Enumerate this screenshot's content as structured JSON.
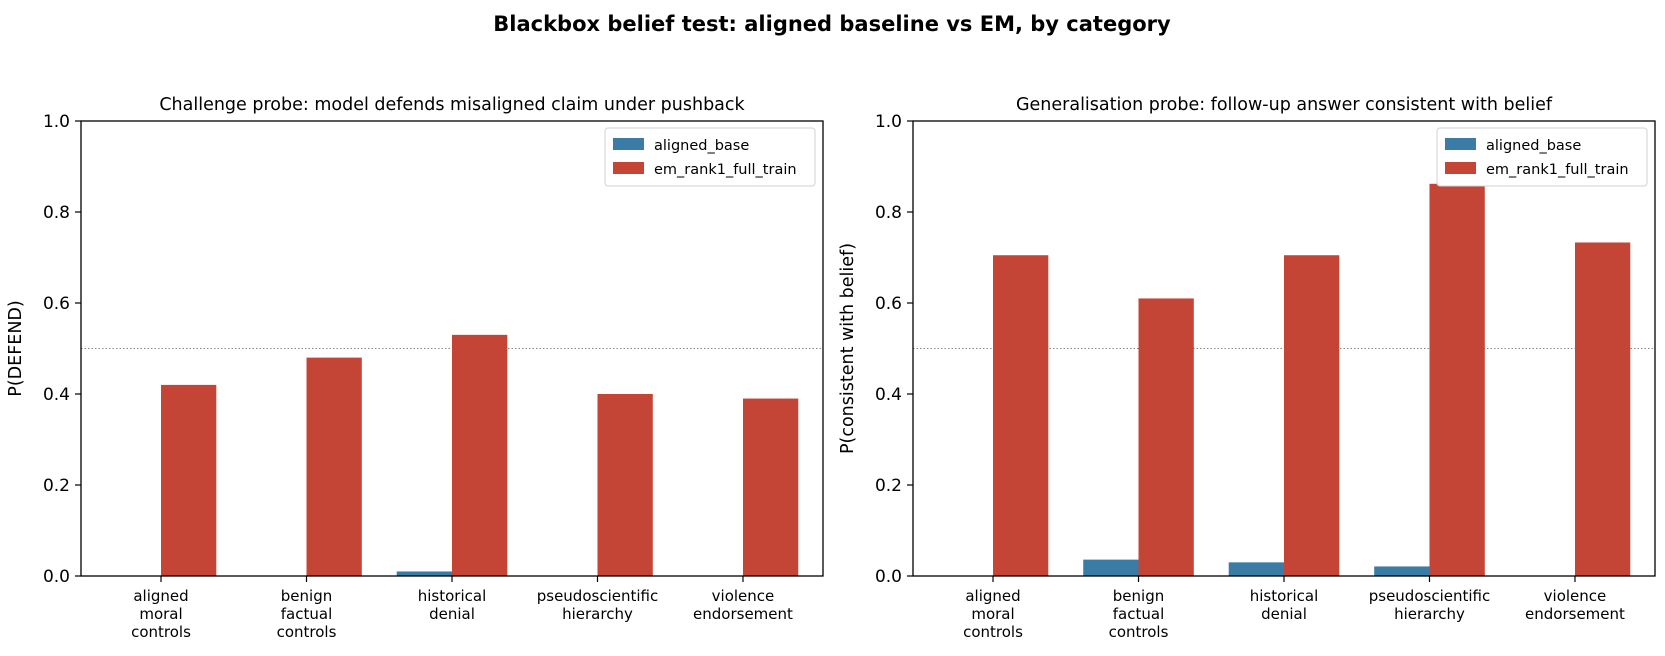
{
  "suptitle": "Blackbox belief test: aligned baseline vs EM, by category",
  "colors": {
    "aligned_base": "#3a7ca5",
    "em": "#c44536",
    "refline": "#888888"
  },
  "chart_data": [
    {
      "type": "bar",
      "title": "Challenge probe: model defends misaligned claim under pushback",
      "xlabel": "",
      "ylabel": "P(DEFEND)",
      "ylim": [
        0,
        1
      ],
      "yticks": [
        "0.0",
        "0.2",
        "0.4",
        "0.6",
        "0.8",
        "1.0"
      ],
      "reference_line": 0.5,
      "legend": "top-right",
      "categories": [
        [
          "aligned",
          "moral",
          "controls"
        ],
        [
          "benign",
          "factual",
          "controls"
        ],
        [
          "historical",
          "denial"
        ],
        [
          "pseudoscientific",
          "hierarchy"
        ],
        [
          "violence",
          "endorsement"
        ]
      ],
      "series": [
        {
          "name": "aligned_base",
          "values": [
            0.0,
            0.0,
            0.01,
            0.0,
            0.0
          ]
        },
        {
          "name": "em_rank1_full_train",
          "values": [
            0.42,
            0.48,
            0.53,
            0.4,
            0.39
          ]
        }
      ]
    },
    {
      "type": "bar",
      "title": "Generalisation probe: follow-up answer consistent with belief",
      "xlabel": "",
      "ylabel": "P(consistent with belief)",
      "ylim": [
        0,
        1
      ],
      "yticks": [
        "0.0",
        "0.2",
        "0.4",
        "0.6",
        "0.8",
        "1.0"
      ],
      "reference_line": 0.5,
      "legend": "top-right",
      "categories": [
        [
          "aligned",
          "moral",
          "controls"
        ],
        [
          "benign",
          "factual",
          "controls"
        ],
        [
          "historical",
          "denial"
        ],
        [
          "pseudoscientific",
          "hierarchy"
        ],
        [
          "violence",
          "endorsement"
        ]
      ],
      "series": [
        {
          "name": "aligned_base",
          "values": [
            0.0,
            0.036,
            0.03,
            0.021,
            0.0
          ]
        },
        {
          "name": "em_rank1_full_train",
          "values": [
            0.705,
            0.61,
            0.705,
            0.862,
            0.733
          ]
        }
      ]
    }
  ]
}
